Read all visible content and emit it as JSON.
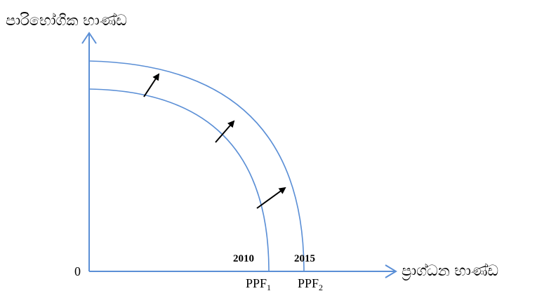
{
  "diagram": {
    "y_axis_label": "පාරිභෝගික භාණ්ඩ",
    "x_axis_label": "ප්‍රාග්ධන භාණ්ඩ",
    "origin_label": "0",
    "curves": [
      {
        "year": "2010",
        "name": "PPF",
        "subscript": "1"
      },
      {
        "year": "2015",
        "name": "PPF",
        "subscript": "2"
      }
    ],
    "colors": {
      "axis": "#5b8fd6",
      "curve": "#5b8fd6",
      "arrow": "#000000",
      "text": "#000000"
    }
  }
}
